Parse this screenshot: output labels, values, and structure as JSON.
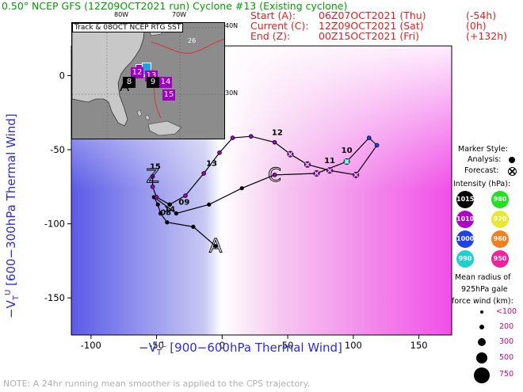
{
  "header": {
    "title": "0.50° NCEP GFS (12Z09OCT2021 run) Cyclone #13 (Existing cyclone)",
    "start_label": "Start (A):",
    "start_value": "06Z07OCT2021 (Thu)",
    "start_offset": "(-54h)",
    "current_label": "Current (C):",
    "current_value": "12Z09OCT2021 (Sat)",
    "current_offset": "(0h)",
    "end_label": "End (Z):",
    "end_value": "00Z15OCT2021 (Fri)",
    "end_offset": "(+132h)"
  },
  "inset": {
    "title": "Track & 08OCT NCEP RTG SST",
    "lon_labels": [
      "80W",
      "70W"
    ],
    "lat_labels": [
      "40N",
      "30N"
    ],
    "sst_label": "26",
    "markers": [
      {
        "label": "12",
        "color": "#a000c0"
      },
      {
        "label": "13",
        "color": "#a000c0"
      },
      {
        "label": "14",
        "color": "#a000c0"
      },
      {
        "label": "15",
        "color": "#a000c0"
      },
      {
        "label": "8",
        "color": "#000000"
      },
      {
        "label": "9",
        "color": "#000000"
      }
    ]
  },
  "legend": {
    "marker_style_title": "Marker Style:",
    "analysis_label": "Analysis:",
    "forecast_label": "Forecast:",
    "intensity_title": "Intensity (hPa):",
    "intensity_swatches": [
      {
        "label": "1015",
        "color": "#000000",
        "text_color": "#ffffff"
      },
      {
        "label": "980",
        "color": "#22e022",
        "text_color": "#ffffff"
      },
      {
        "label": "1010",
        "color": "#b000c8",
        "text_color": "#ffffff"
      },
      {
        "label": "970",
        "color": "#e8e830",
        "text_color": "#ffffff"
      },
      {
        "label": "1000",
        "color": "#2040e8",
        "text_color": "#ffffff"
      },
      {
        "label": "960",
        "color": "#f08020",
        "text_color": "#ffffff"
      },
      {
        "label": "990",
        "color": "#20d0d0",
        "text_color": "#ffffff"
      },
      {
        "label": "950",
        "color": "#f020a0",
        "text_color": "#ffffff"
      }
    ],
    "radius_title_1": "Mean radius of",
    "radius_title_2": "925hPa gale",
    "radius_title_3": "force wind (km):",
    "radius_entries": [
      "<100",
      "200",
      "300",
      "500",
      "750"
    ]
  },
  "note": "NOTE:  A 24hr running mean smoother is applied to the CPS trajectory.",
  "chart_data": {
    "type": "line",
    "title": "0.50° NCEP GFS (12Z09OCT2021 run) Cyclone #13 (Existing cyclone)",
    "xlabel": "-V_T^L [900–600hPa Thermal Wind]",
    "ylabel": "-V_T^U [600–300hPa Thermal Wind]",
    "xlim": [
      -115,
      175
    ],
    "ylim": [
      -175,
      20
    ],
    "xticks": [
      -100,
      -50,
      0,
      50,
      100,
      150
    ],
    "yticks": [
      -150,
      -100,
      -50,
      0
    ],
    "analysis_points": [
      {
        "x": -5,
        "y": -115
      },
      {
        "x": -22,
        "y": -102
      },
      {
        "x": -42,
        "y": -99
      },
      {
        "x": -47,
        "y": -93
      },
      {
        "x": -49,
        "y": -87
      },
      {
        "x": -52,
        "y": -82
      },
      {
        "x": -35,
        "y": -93
      },
      {
        "x": -10,
        "y": -87
      },
      {
        "x": 15,
        "y": -76
      },
      {
        "x": 40,
        "y": -67
      }
    ],
    "forecast_points": [
      {
        "x": 40,
        "y": -67
      },
      {
        "x": 72,
        "y": -66
      },
      {
        "x": 95,
        "y": -58
      },
      {
        "x": 112,
        "y": -42
      },
      {
        "x": 118,
        "y": -47
      },
      {
        "x": 102,
        "y": -67
      },
      {
        "x": 82,
        "y": -64
      },
      {
        "x": 65,
        "y": -60
      },
      {
        "x": 52,
        "y": -53
      },
      {
        "x": 40,
        "y": -45
      },
      {
        "x": 22,
        "y": -41
      },
      {
        "x": 8,
        "y": -42
      },
      {
        "x": -2,
        "y": -52
      },
      {
        "x": -14,
        "y": -66
      },
      {
        "x": -28,
        "y": -81
      },
      {
        "x": -40,
        "y": -87
      },
      {
        "x": -50,
        "y": -82
      },
      {
        "x": -53,
        "y": -75
      },
      {
        "x": -53,
        "y": -68
      }
    ],
    "point_labels": [
      {
        "text": "08",
        "x": -43,
        "y": -94
      },
      {
        "text": "09",
        "x": -29,
        "y": -87
      },
      {
        "text": "10",
        "x": 95,
        "y": -52
      },
      {
        "text": "11",
        "x": 82,
        "y": -59
      },
      {
        "text": "12",
        "x": 42,
        "y": -40
      },
      {
        "text": "13",
        "x": -8,
        "y": -61
      },
      {
        "text": "14",
        "x": -40,
        "y": -92
      },
      {
        "text": "15",
        "x": -51,
        "y": -63
      }
    ],
    "markers": {
      "start": {
        "label": "A",
        "x": -5,
        "y": -115
      },
      "current": {
        "label": "C",
        "x": 40,
        "y": -67
      },
      "end": {
        "label": "Z",
        "x": -53,
        "y": -68
      }
    }
  }
}
